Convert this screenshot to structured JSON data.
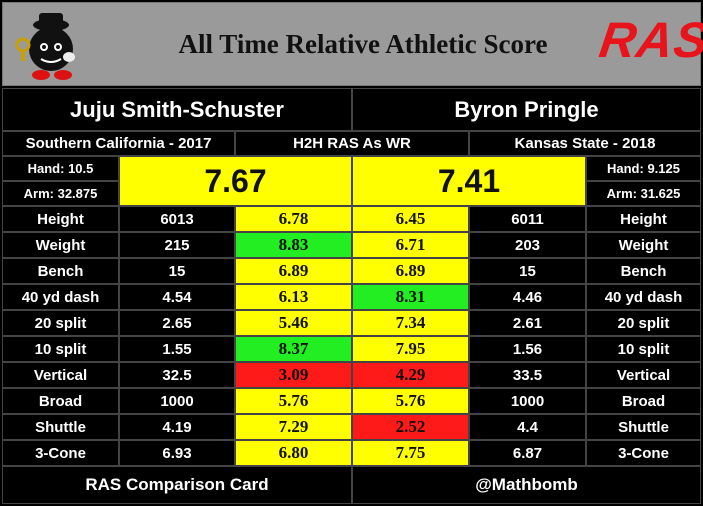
{
  "header": {
    "title": "All Time Relative Athletic Score",
    "logo_text": "RAS"
  },
  "players": {
    "left": {
      "name": "Juju Smith-Schuster",
      "school": "Southern California - 2017",
      "hand": "Hand: 10.5",
      "arm": "Arm: 32.875",
      "ras": "7.67"
    },
    "right": {
      "name": "Byron Pringle",
      "school": "Kansas State - 2018",
      "hand": "Hand: 9.125",
      "arm": "Arm: 31.625",
      "ras": "7.41"
    }
  },
  "center_label": "H2H RAS As WR",
  "colors": {
    "yellow": "#ffff00",
    "green": "#22ee22",
    "red": "#ff1a1a",
    "header_bg": "#9a9a9a",
    "logo_red": "#e8141b"
  },
  "rows": [
    {
      "label": "Height",
      "left_val": "6013",
      "left_score": "6.78",
      "left_color": "yellow",
      "right_score": "6.45",
      "right_color": "yellow",
      "right_val": "6011"
    },
    {
      "label": "Weight",
      "left_val": "215",
      "left_score": "8.83",
      "left_color": "green",
      "right_score": "6.71",
      "right_color": "yellow",
      "right_val": "203"
    },
    {
      "label": "Bench",
      "left_val": "15",
      "left_score": "6.89",
      "left_color": "yellow",
      "right_score": "6.89",
      "right_color": "yellow",
      "right_val": "15"
    },
    {
      "label": "40 yd dash",
      "left_val": "4.54",
      "left_score": "6.13",
      "left_color": "yellow",
      "right_score": "8.31",
      "right_color": "green",
      "right_val": "4.46"
    },
    {
      "label": "20 split",
      "left_val": "2.65",
      "left_score": "5.46",
      "left_color": "yellow",
      "right_score": "7.34",
      "right_color": "yellow",
      "right_val": "2.61"
    },
    {
      "label": "10 split",
      "left_val": "1.55",
      "left_score": "8.37",
      "left_color": "green",
      "right_score": "7.95",
      "right_color": "yellow",
      "right_val": "1.56"
    },
    {
      "label": "Vertical",
      "left_val": "32.5",
      "left_score": "3.09",
      "left_color": "red",
      "right_score": "4.29",
      "right_color": "red",
      "right_val": "33.5"
    },
    {
      "label": "Broad",
      "left_val": "1000",
      "left_score": "5.76",
      "left_color": "yellow",
      "right_score": "5.76",
      "right_color": "yellow",
      "right_val": "1000"
    },
    {
      "label": "Shuttle",
      "left_val": "4.19",
      "left_score": "7.29",
      "left_color": "yellow",
      "right_score": "2.52",
      "right_color": "red",
      "right_val": "4.4"
    },
    {
      "label": "3-Cone",
      "left_val": "6.93",
      "left_score": "6.80",
      "left_color": "yellow",
      "right_score": "7.75",
      "right_color": "yellow",
      "right_val": "6.87"
    }
  ],
  "footer": {
    "left": "RAS Comparison Card",
    "right": "@Mathbomb"
  }
}
